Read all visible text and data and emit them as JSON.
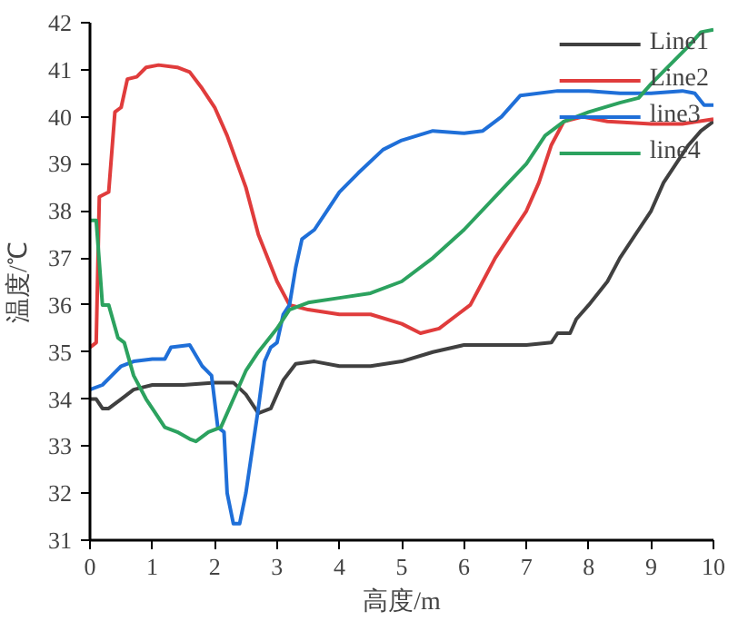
{
  "chart_data": {
    "type": "line",
    "xlabel": "高度/m",
    "ylabel": "温度/℃",
    "xlim": [
      0,
      10
    ],
    "ylim": [
      31,
      42
    ],
    "xticks": [
      0,
      1,
      2,
      3,
      4,
      5,
      6,
      7,
      8,
      9,
      10
    ],
    "yticks": [
      31,
      32,
      33,
      34,
      35,
      36,
      37,
      38,
      39,
      40,
      41,
      42
    ],
    "grid": false,
    "legend": "top right",
    "marker": "none",
    "line_style": "solid",
    "series": [
      {
        "name": "Line1",
        "color": "#404040",
        "x": [
          0,
          0.1,
          0.2,
          0.3,
          0.5,
          0.7,
          1.0,
          1.5,
          2.0,
          2.3,
          2.5,
          2.7,
          2.9,
          3.1,
          3.3,
          3.6,
          4.0,
          4.5,
          5.0,
          5.5,
          6.0,
          7.0,
          7.4,
          7.5,
          7.7,
          7.8,
          8.0,
          8.3,
          8.5,
          8.8,
          9.0,
          9.2,
          9.4,
          9.6,
          9.8,
          10
        ],
        "values": [
          34.0,
          34.0,
          33.8,
          33.8,
          34.0,
          34.2,
          34.3,
          34.3,
          34.35,
          34.35,
          34.1,
          33.7,
          33.8,
          34.4,
          34.75,
          34.8,
          34.7,
          34.7,
          34.8,
          35.0,
          35.15,
          35.15,
          35.2,
          35.4,
          35.4,
          35.7,
          36.0,
          36.5,
          37.0,
          37.6,
          38.0,
          38.6,
          39.0,
          39.4,
          39.7,
          39.9
        ]
      },
      {
        "name": "Line2",
        "color": "#e03c3c",
        "x": [
          0,
          0.1,
          0.15,
          0.3,
          0.4,
          0.5,
          0.6,
          0.75,
          0.9,
          1.1,
          1.4,
          1.6,
          1.8,
          2.0,
          2.2,
          2.5,
          2.7,
          3.0,
          3.2,
          3.5,
          4.0,
          4.5,
          5.0,
          5.3,
          5.6,
          5.9,
          6.1,
          6.3,
          6.5,
          6.8,
          7.0,
          7.2,
          7.4,
          7.6,
          7.9,
          8.3,
          9.0,
          9.5,
          10
        ],
        "values": [
          35.1,
          35.2,
          38.3,
          38.4,
          40.1,
          40.2,
          40.8,
          40.85,
          41.05,
          41.1,
          41.05,
          40.95,
          40.6,
          40.2,
          39.6,
          38.5,
          37.5,
          36.5,
          36.0,
          35.9,
          35.8,
          35.8,
          35.6,
          35.4,
          35.5,
          35.8,
          36.0,
          36.5,
          37.0,
          37.6,
          38.0,
          38.6,
          39.4,
          39.9,
          40.0,
          39.9,
          39.85,
          39.85,
          39.95
        ]
      },
      {
        "name": "line3",
        "color": "#1f6fd8",
        "x": [
          0,
          0.2,
          0.35,
          0.5,
          0.7,
          1.0,
          1.2,
          1.3,
          1.6,
          1.8,
          1.95,
          2.05,
          2.15,
          2.2,
          2.3,
          2.4,
          2.5,
          2.7,
          2.8,
          2.9,
          3.0,
          3.1,
          3.2,
          3.3,
          3.4,
          3.6,
          3.8,
          4.0,
          4.3,
          4.7,
          5.0,
          5.5,
          6.0,
          6.3,
          6.6,
          6.9,
          7.5,
          8.0,
          8.5,
          9.0,
          9.5,
          9.7,
          9.85,
          10
        ],
        "values": [
          34.2,
          34.3,
          34.5,
          34.7,
          34.8,
          34.85,
          34.85,
          35.1,
          35.15,
          34.7,
          34.5,
          33.4,
          33.3,
          32.0,
          31.35,
          31.35,
          32.0,
          33.8,
          34.8,
          35.1,
          35.2,
          35.8,
          36.0,
          36.8,
          37.4,
          37.6,
          38.0,
          38.4,
          38.8,
          39.3,
          39.5,
          39.7,
          39.65,
          39.7,
          40.0,
          40.45,
          40.55,
          40.55,
          40.5,
          40.5,
          40.55,
          40.5,
          40.25,
          40.25
        ]
      },
      {
        "name": "line4",
        "color": "#2ca25f",
        "x": [
          0,
          0.1,
          0.2,
          0.3,
          0.45,
          0.55,
          0.7,
          0.9,
          1.0,
          1.2,
          1.4,
          1.6,
          1.7,
          1.9,
          2.1,
          2.3,
          2.5,
          2.7,
          3.0,
          3.2,
          3.5,
          4.0,
          4.5,
          5.0,
          5.5,
          6.0,
          6.5,
          7.0,
          7.3,
          7.6,
          8.0,
          8.5,
          8.8,
          9.0,
          9.3,
          9.6,
          9.8,
          10
        ],
        "values": [
          37.8,
          37.8,
          36.0,
          36.0,
          35.3,
          35.2,
          34.5,
          34.0,
          33.8,
          33.4,
          33.3,
          33.15,
          33.1,
          33.3,
          33.4,
          34.0,
          34.6,
          35.0,
          35.5,
          35.9,
          36.05,
          36.15,
          36.25,
          36.5,
          37.0,
          37.6,
          38.3,
          39.0,
          39.6,
          39.9,
          40.1,
          40.3,
          40.4,
          40.7,
          41.1,
          41.5,
          41.8,
          41.85
        ]
      }
    ]
  }
}
